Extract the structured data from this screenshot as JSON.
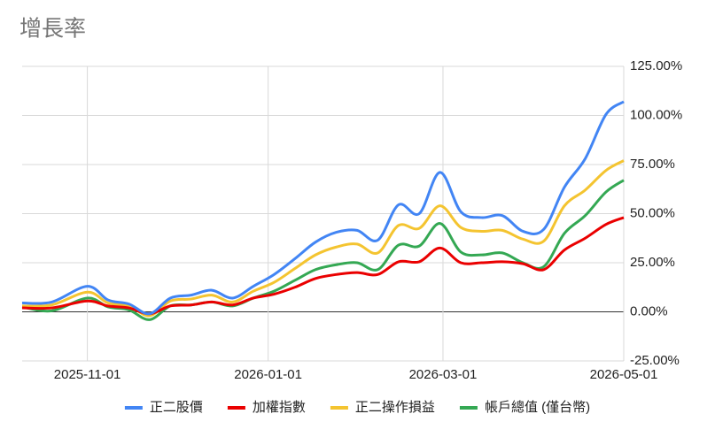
{
  "chart_data": {
    "type": "line",
    "title": "增長率",
    "x": [
      "2025-10-10",
      "2025-10-20",
      "2025-11-01",
      "2025-11-08",
      "2025-11-15",
      "2025-11-22",
      "2025-11-29",
      "2025-12-06",
      "2025-12-13",
      "2025-12-20",
      "2025-12-27",
      "2026-01-03",
      "2026-01-10",
      "2026-01-17",
      "2026-01-24",
      "2026-01-31",
      "2026-02-07",
      "2026-02-14",
      "2026-02-21",
      "2026-02-28",
      "2026-03-07",
      "2026-03-14",
      "2026-03-21",
      "2026-03-28",
      "2026-04-04",
      "2026-04-11",
      "2026-04-18",
      "2026-04-25",
      "2026-05-01"
    ],
    "series": [
      {
        "name": "正二股價",
        "color": "#4285f4",
        "values": [
          4.5,
          5,
          13,
          6,
          4,
          -1,
          7,
          8.5,
          11,
          7,
          13,
          19,
          27,
          35.5,
          40.5,
          41.5,
          36.5,
          54.5,
          50,
          71,
          51,
          48,
          49,
          41,
          42,
          63.5,
          78,
          100.5,
          107
        ]
      },
      {
        "name": "加權指數",
        "color": "#ea0000",
        "values": [
          2,
          2,
          5.5,
          3,
          2,
          -1,
          3,
          3.5,
          5,
          3.5,
          7,
          9,
          12.5,
          17,
          19,
          20,
          19,
          25.5,
          25.5,
          32.5,
          25,
          25,
          25.5,
          24.5,
          21.5,
          31.5,
          37.5,
          44.5,
          48
        ]
      },
      {
        "name": "正二操作損益",
        "color": "#f4c430",
        "values": [
          3,
          3.5,
          10,
          4.5,
          3,
          -2,
          5.5,
          6.5,
          8.5,
          5,
          10.5,
          15,
          22,
          29,
          33,
          34.5,
          30,
          44,
          42.5,
          54,
          43,
          41,
          41.5,
          37,
          36,
          54,
          62,
          72,
          77
        ]
      },
      {
        "name": "帳戶總值 (僅台幣)",
        "color": "#34a853",
        "values": [
          2.5,
          0.5,
          7,
          2.5,
          1,
          -4,
          3,
          3.5,
          5,
          3,
          7,
          10.5,
          16,
          21.5,
          24,
          25,
          21.5,
          34,
          33.5,
          45,
          30.5,
          29,
          30,
          25,
          23,
          40,
          49,
          61,
          67
        ]
      }
    ],
    "xlim": [
      "2025-10-10",
      "2026-05-01"
    ],
    "xticks": [
      "2025-11-01",
      "2026-01-01",
      "2026-03-01",
      "2026-05-01"
    ],
    "ylim": [
      -25,
      125
    ],
    "yticks": [
      {
        "value": -25,
        "label": "-25.00%"
      },
      {
        "value": 0,
        "label": "0.00%"
      },
      {
        "value": 25,
        "label": "25.00%"
      },
      {
        "value": 50,
        "label": "50.00%"
      },
      {
        "value": 75,
        "label": "75.00%"
      },
      {
        "value": 100,
        "label": "100.00%"
      },
      {
        "value": 125,
        "label": "125.00%"
      }
    ],
    "grid": true,
    "legend": "bottom"
  }
}
